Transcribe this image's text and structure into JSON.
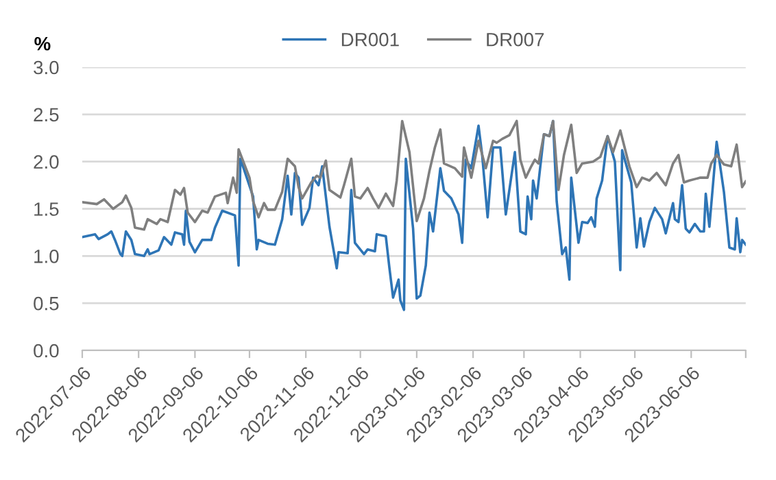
{
  "chart_data": {
    "type": "line",
    "ylabel": "%",
    "legend": "top",
    "grid": "y",
    "xlim": [
      "2022-07-06",
      "2023-07-06"
    ],
    "xticks": [
      "2022-07-06",
      "2022-08-06",
      "2022-09-06",
      "2022-10-06",
      "2022-11-06",
      "2022-12-06",
      "2023-01-06",
      "2023-02-06",
      "2023-03-06",
      "2023-04-06",
      "2023-05-06",
      "2023-06-06",
      {
        "value": "2023-07-06",
        "label": null
      }
    ],
    "ylim": [
      0,
      3
    ],
    "yticks": [
      {
        "value": 0,
        "label": "0.0"
      },
      {
        "value": 0.5,
        "label": "0.5"
      },
      {
        "value": 1,
        "label": "1.0"
      },
      {
        "value": 1.5,
        "label": "1.5"
      },
      {
        "value": 2,
        "label": "2.0"
      },
      {
        "value": 2.5,
        "label": "2.5"
      },
      {
        "value": 3,
        "label": "3.0"
      }
    ],
    "series": [
      {
        "name": "DR001",
        "color": "#2e75b6",
        "x": [
          "2022-07-06",
          "2022-07-13",
          "2022-07-15",
          "2022-07-20",
          "2022-07-22",
          "2022-07-24",
          "2022-07-27",
          "2022-07-28",
          "2022-07-30",
          "2022-08-02",
          "2022-08-04",
          "2022-08-09",
          "2022-08-11",
          "2022-08-12",
          "2022-08-17",
          "2022-08-20",
          "2022-08-24",
          "2022-08-26",
          "2022-08-30",
          "2022-08-31",
          "2022-09-01",
          "2022-09-03",
          "2022-09-06",
          "2022-09-10",
          "2022-09-15",
          "2022-09-17",
          "2022-09-21",
          "2022-09-28",
          "2022-09-30",
          "2022-10-01",
          "2022-10-08",
          "2022-10-10",
          "2022-10-11",
          "2022-10-16",
          "2022-10-20",
          "2022-10-24",
          "2022-10-27",
          "2022-10-29",
          "2022-10-31",
          "2022-11-02",
          "2022-11-04",
          "2022-11-08",
          "2022-11-10",
          "2022-11-13",
          "2022-11-15",
          "2022-11-19",
          "2022-11-23",
          "2022-11-24",
          "2022-11-29",
          "2022-11-30",
          "2022-12-01",
          "2022-12-03",
          "2022-12-08",
          "2022-12-10",
          "2022-12-14",
          "2022-12-15",
          "2022-12-20",
          "2022-12-22",
          "2022-12-24",
          "2022-12-27",
          "2022-12-28",
          "2022-12-30",
          "2022-12-31",
          "2023-01-04",
          "2023-01-06",
          "2023-01-08",
          "2023-01-11",
          "2023-01-13",
          "2023-01-15",
          "2023-01-19",
          "2023-01-21",
          "2023-01-25",
          "2023-01-29",
          "2023-01-31",
          "2023-02-02",
          "2023-02-05",
          "2023-02-09",
          "2023-02-11",
          "2023-02-14",
          "2023-02-17",
          "2023-02-21",
          "2023-02-24",
          "2023-03-01",
          "2023-03-04",
          "2023-03-07",
          "2023-03-08",
          "2023-03-10",
          "2023-03-11",
          "2023-03-13",
          "2023-03-17",
          "2023-03-20",
          "2023-03-22",
          "2023-03-24",
          "2023-03-27",
          "2023-03-29",
          "2023-03-31",
          "2023-04-01",
          "2023-04-05",
          "2023-04-07",
          "2023-04-10",
          "2023-04-12",
          "2023-04-14",
          "2023-04-15",
          "2023-04-18",
          "2023-04-21",
          "2023-04-25",
          "2023-04-28",
          "2023-04-29",
          "2023-05-04",
          "2023-05-07",
          "2023-05-09",
          "2023-05-11",
          "2023-05-14",
          "2023-05-17",
          "2023-05-21",
          "2023-05-23",
          "2023-05-27",
          "2023-05-28",
          "2023-05-30",
          "2023-06-01",
          "2023-06-03",
          "2023-06-05",
          "2023-06-08",
          "2023-06-11",
          "2023-06-13",
          "2023-06-14",
          "2023-06-16",
          "2023-06-20",
          "2023-06-24",
          "2023-06-27",
          "2023-06-30",
          "2023-07-01",
          "2023-07-03",
          "2023-07-04",
          "2023-07-06"
        ],
        "values": [
          1.2,
          1.23,
          1.18,
          1.23,
          1.26,
          1.17,
          1.02,
          1.0,
          1.26,
          1.17,
          1.02,
          1.0,
          1.07,
          1.02,
          1.06,
          1.2,
          1.12,
          1.25,
          1.23,
          1.12,
          1.48,
          1.15,
          1.04,
          1.17,
          1.17,
          1.3,
          1.48,
          1.43,
          0.9,
          2.03,
          1.63,
          1.07,
          1.17,
          1.13,
          1.12,
          1.39,
          1.85,
          1.44,
          1.88,
          1.83,
          1.33,
          1.51,
          1.83,
          1.75,
          1.95,
          1.31,
          0.87,
          1.04,
          1.03,
          1.31,
          1.7,
          1.14,
          1.02,
          1.07,
          1.05,
          1.23,
          1.21,
          0.87,
          0.56,
          0.75,
          0.53,
          0.43,
          2.03,
          1.29,
          0.55,
          0.58,
          0.9,
          1.46,
          1.26,
          1.93,
          1.69,
          1.61,
          1.44,
          1.14,
          2.02,
          1.93,
          2.38,
          2.07,
          1.41,
          2.15,
          2.15,
          1.44,
          2.1,
          1.26,
          1.23,
          1.63,
          1.39,
          1.8,
          1.61,
          2.29,
          2.27,
          2.43,
          1.58,
          1.02,
          1.09,
          0.75,
          1.83,
          1.14,
          1.36,
          1.35,
          1.41,
          1.31,
          1.61,
          1.8,
          2.27,
          2.0,
          0.85,
          2.12,
          1.78,
          1.09,
          1.4,
          1.1,
          1.36,
          1.51,
          1.39,
          1.24,
          1.56,
          1.39,
          1.36,
          1.75,
          1.29,
          1.25,
          1.34,
          1.26,
          1.26,
          1.66,
          1.31,
          2.21,
          1.68,
          1.09,
          1.07,
          1.4,
          1.04,
          1.17,
          1.12
        ]
      },
      {
        "name": "DR007",
        "color": "#7f7f7f",
        "x": [
          "2022-07-06",
          "2022-07-14",
          "2022-07-18",
          "2022-07-23",
          "2022-07-28",
          "2022-07-30",
          "2022-08-02",
          "2022-08-04",
          "2022-08-09",
          "2022-08-11",
          "2022-08-16",
          "2022-08-18",
          "2022-08-22",
          "2022-08-26",
          "2022-08-29",
          "2022-08-31",
          "2022-09-02",
          "2022-09-06",
          "2022-09-10",
          "2022-09-13",
          "2022-09-17",
          "2022-09-23",
          "2022-09-24",
          "2022-09-27",
          "2022-09-29",
          "2022-09-30",
          "2022-10-06",
          "2022-10-08",
          "2022-10-11",
          "2022-10-14",
          "2022-10-16",
          "2022-10-20",
          "2022-10-24",
          "2022-10-27",
          "2022-10-31",
          "2022-11-02",
          "2022-11-04",
          "2022-11-09",
          "2022-11-12",
          "2022-11-14",
          "2022-11-17",
          "2022-11-19",
          "2022-11-22",
          "2022-11-25",
          "2022-11-27",
          "2022-12-01",
          "2022-12-03",
          "2022-12-06",
          "2022-12-10",
          "2022-12-13",
          "2022-12-16",
          "2022-12-20",
          "2022-12-24",
          "2022-12-26",
          "2022-12-29",
          "2023-01-02",
          "2023-01-06",
          "2023-01-10",
          "2023-01-13",
          "2023-01-16",
          "2023-01-19",
          "2023-01-21",
          "2023-01-27",
          "2023-01-31",
          "2023-02-01",
          "2023-02-05",
          "2023-02-09",
          "2023-02-13",
          "2023-02-17",
          "2023-02-19",
          "2023-02-22",
          "2023-02-26",
          "2023-03-02",
          "2023-03-04",
          "2023-03-07",
          "2023-03-10",
          "2023-03-12",
          "2023-03-14",
          "2023-03-17",
          "2023-03-20",
          "2023-03-22",
          "2023-03-25",
          "2023-03-28",
          "2023-04-01",
          "2023-04-04",
          "2023-04-07",
          "2023-04-13",
          "2023-04-17",
          "2023-04-21",
          "2023-04-24",
          "2023-04-28",
          "2023-05-03",
          "2023-05-07",
          "2023-05-10",
          "2023-05-14",
          "2023-05-18",
          "2023-05-23",
          "2023-05-27",
          "2023-05-30",
          "2023-06-02",
          "2023-06-05",
          "2023-06-11",
          "2023-06-15",
          "2023-06-17",
          "2023-06-20",
          "2023-06-24",
          "2023-06-28",
          "2023-07-01",
          "2023-07-04",
          "2023-07-06"
        ],
        "values": [
          1.57,
          1.55,
          1.6,
          1.5,
          1.57,
          1.64,
          1.51,
          1.3,
          1.28,
          1.39,
          1.34,
          1.39,
          1.36,
          1.7,
          1.65,
          1.72,
          1.46,
          1.36,
          1.48,
          1.46,
          1.63,
          1.67,
          1.56,
          1.83,
          1.67,
          2.13,
          1.83,
          1.58,
          1.41,
          1.56,
          1.49,
          1.49,
          1.68,
          2.03,
          1.95,
          1.73,
          1.61,
          1.78,
          1.85,
          1.83,
          2.01,
          1.7,
          1.66,
          1.62,
          1.75,
          2.03,
          1.63,
          1.61,
          1.72,
          1.61,
          1.51,
          1.66,
          1.53,
          1.8,
          2.43,
          2.1,
          1.37,
          1.61,
          1.9,
          2.15,
          2.34,
          1.98,
          1.93,
          1.84,
          2.15,
          1.83,
          2.22,
          1.93,
          2.22,
          2.2,
          2.24,
          2.28,
          2.43,
          2.02,
          1.83,
          1.95,
          2.02,
          1.98,
          2.29,
          2.27,
          2.43,
          1.7,
          2.07,
          2.39,
          1.88,
          1.98,
          2.0,
          2.05,
          2.27,
          2.1,
          2.33,
          1.95,
          1.73,
          1.83,
          1.8,
          1.88,
          1.75,
          1.98,
          2.07,
          1.78,
          1.8,
          1.83,
          1.83,
          1.98,
          2.07,
          1.97,
          1.95,
          2.18,
          1.73,
          1.79
        ]
      }
    ]
  }
}
